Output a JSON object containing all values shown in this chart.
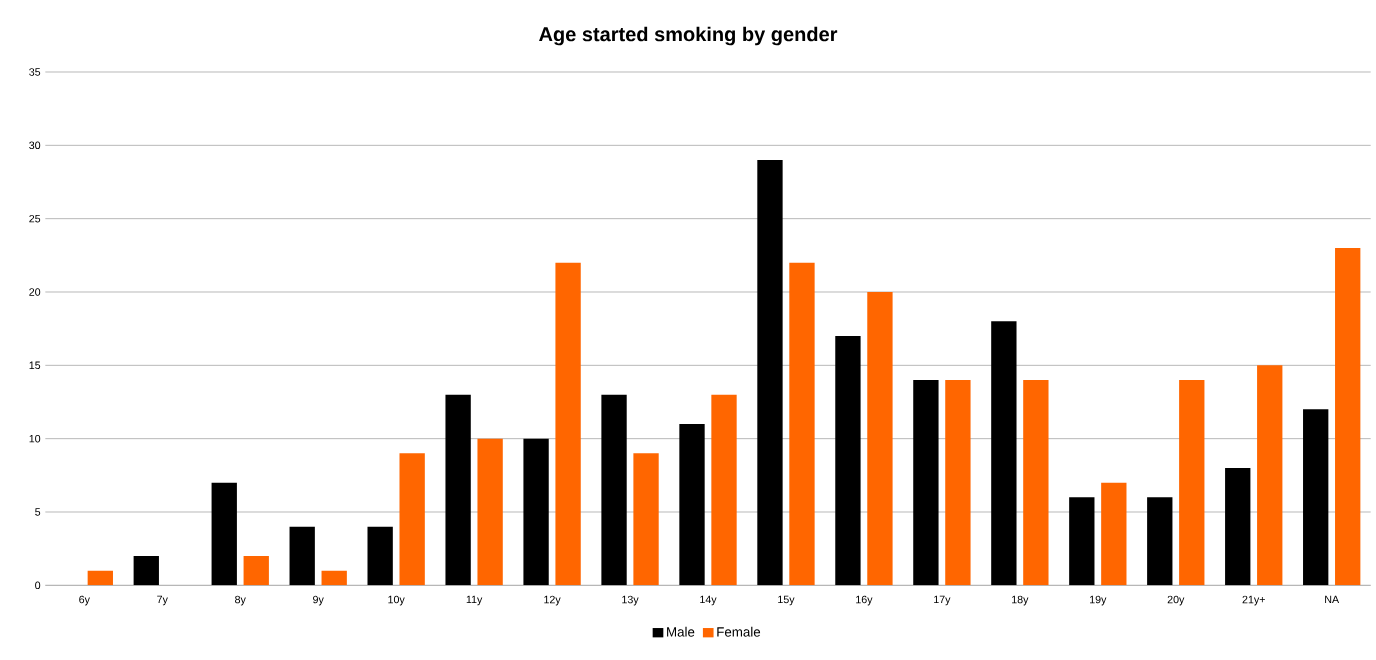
{
  "chart_data": {
    "type": "bar",
    "title": "Age started smoking by gender",
    "categories": [
      "6y",
      "7y",
      "8y",
      "9y",
      "10y",
      "11y",
      "12y",
      "13y",
      "14y",
      "15y",
      "16y",
      "17y",
      "18y",
      "19y",
      "20y",
      "21y+",
      "NA"
    ],
    "series": [
      {
        "name": "Male",
        "color": "#000000",
        "values": [
          0,
          2,
          7,
          4,
          4,
          13,
          10,
          13,
          11,
          29,
          17,
          14,
          18,
          6,
          6,
          8,
          12
        ]
      },
      {
        "name": "Female",
        "color": "#ff6600",
        "values": [
          1,
          0,
          2,
          1,
          9,
          10,
          22,
          9,
          13,
          22,
          20,
          14,
          14,
          7,
          14,
          15,
          23
        ]
      }
    ],
    "ylim": [
      0,
      35
    ],
    "yticks": [
      0,
      5,
      10,
      15,
      20,
      25,
      30,
      35
    ],
    "grid": "y",
    "legend": "bottom"
  }
}
